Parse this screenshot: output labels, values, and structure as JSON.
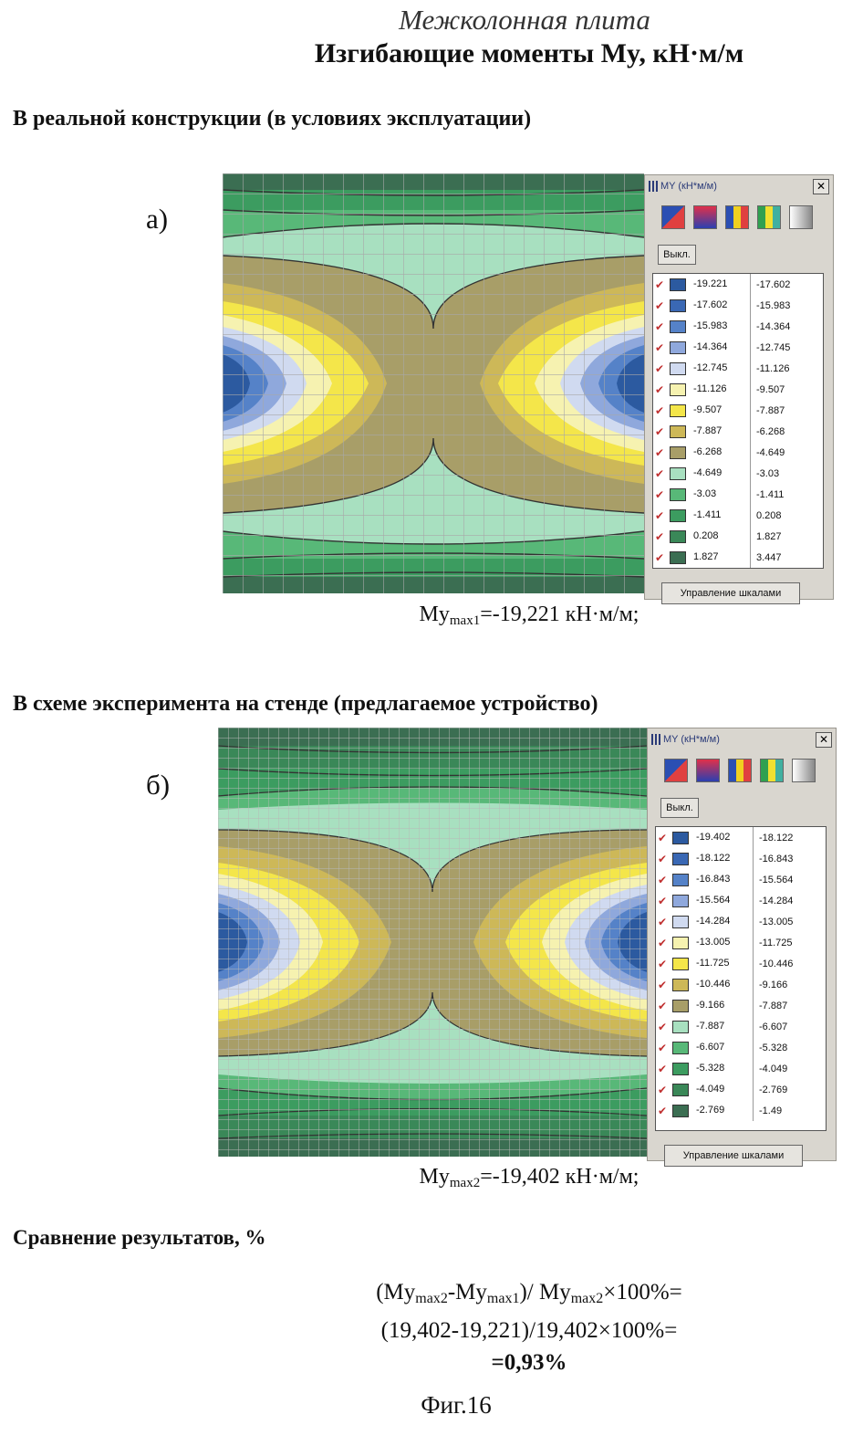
{
  "header": {
    "title_italic": "Межколонная  плита",
    "title_bold": "Изгибающие моменты Мy, кН·м/м"
  },
  "section_a": {
    "heading": "В реальной конструкции (в условиях эксплуатации)",
    "letter": "а)",
    "result_prefix": "My",
    "result_sub": "max1",
    "result_suffix": "=-19,221 кН·м/м;",
    "legend": {
      "title": "MY (кН*м/м)",
      "off_label": "Выкл.",
      "manage_label": "Управление шкалами",
      "rows": [
        {
          "from": "-19.221",
          "to": "-17.602",
          "color": "#2c5aa0"
        },
        {
          "from": "-17.602",
          "to": "-15.983",
          "color": "#3a68b4"
        },
        {
          "from": "-15.983",
          "to": "-14.364",
          "color": "#5582c8"
        },
        {
          "from": "-14.364",
          "to": "-12.745",
          "color": "#8fa8dc"
        },
        {
          "from": "-12.745",
          "to": "-11.126",
          "color": "#d0daf0"
        },
        {
          "from": "-11.126",
          "to": "-9.507",
          "color": "#f6f2b0"
        },
        {
          "from": "-9.507",
          "to": "-7.887",
          "color": "#f4e64a"
        },
        {
          "from": "-7.887",
          "to": "-6.268",
          "color": "#cdb858"
        },
        {
          "from": "-6.268",
          "to": "-4.649",
          "color": "#a89e68"
        },
        {
          "from": "-4.649",
          "to": "-3.03",
          "color": "#a8e0c0"
        },
        {
          "from": "-3.03",
          "to": "-1.411",
          "color": "#58b878"
        },
        {
          "from": "-1.411",
          "to": "0.208",
          "color": "#3c9c60"
        },
        {
          "from": "0.208",
          "to": "1.827",
          "color": "#3a8858"
        },
        {
          "from": "1.827",
          "to": "3.447",
          "color": "#3b6e52"
        }
      ]
    }
  },
  "section_b": {
    "heading": "В схеме эксперимента на стенде (предлагаемое устройство)",
    "letter": "б)",
    "result_prefix": "My",
    "result_sub": "max2",
    "result_suffix": "=-19,402 кН·м/м;",
    "legend": {
      "title": "MY (кН*м/м)",
      "off_label": "Выкл.",
      "manage_label": "Управление шкалами",
      "rows": [
        {
          "from": "-19.402",
          "to": "-18.122",
          "color": "#2c5aa0"
        },
        {
          "from": "-18.122",
          "to": "-16.843",
          "color": "#3a68b4"
        },
        {
          "from": "-16.843",
          "to": "-15.564",
          "color": "#5582c8"
        },
        {
          "from": "-15.564",
          "to": "-14.284",
          "color": "#8fa8dc"
        },
        {
          "from": "-14.284",
          "to": "-13.005",
          "color": "#d0daf0"
        },
        {
          "from": "-13.005",
          "to": "-11.725",
          "color": "#f6f2b0"
        },
        {
          "from": "-11.725",
          "to": "-10.446",
          "color": "#f4e64a"
        },
        {
          "from": "-10.446",
          "to": "-9.166",
          "color": "#cdb858"
        },
        {
          "from": "-9.166",
          "to": "-7.887",
          "color": "#a89e68"
        },
        {
          "from": "-7.887",
          "to": "-6.607",
          "color": "#a8e0c0"
        },
        {
          "from": "-6.607",
          "to": "-5.328",
          "color": "#58b878"
        },
        {
          "from": "-5.328",
          "to": "-4.049",
          "color": "#3c9c60"
        },
        {
          "from": "-4.049",
          "to": "-2.769",
          "color": "#3a8858"
        },
        {
          "from": "-2.769",
          "to": "-1.49",
          "color": "#3b6e52"
        }
      ]
    }
  },
  "comparison": {
    "heading": "Сравнение результатов, %",
    "line1_a": "(My",
    "line1_sub1": "max2",
    "line1_b": "-My",
    "line1_sub2": "max1",
    "line1_c": ")/ My",
    "line1_sub3": "max2",
    "line1_d": "×100%=",
    "line2": "(19,402-19,221)/19,402×100%=",
    "line3": "=0,93%"
  },
  "figure_label": "Фиг.16"
}
